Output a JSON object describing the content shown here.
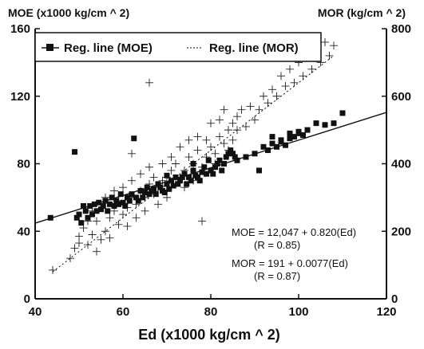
{
  "chart_data": {
    "type": "scatter",
    "xlabel": "Ed (x1000 kg/cm ^ 2)",
    "ylabel_left": "MOE (x1000 kg/cm ^ 2)",
    "ylabel_right": "MOR (kg/cm ^ 2)",
    "xlim": [
      40,
      120
    ],
    "ylim_left": [
      0,
      160
    ],
    "ylim_right": [
      0,
      800
    ],
    "x_ticks": [
      40,
      60,
      80,
      100,
      120
    ],
    "y_left_ticks": [
      0,
      40,
      80,
      120,
      160
    ],
    "y_right_ticks": [
      0,
      200,
      400,
      600,
      800
    ],
    "grid": false,
    "legend": {
      "placement": "top-left",
      "entries": [
        "Reg. line (MOE)",
        "Reg. line (MOR)"
      ]
    },
    "annotations": {
      "moe_eq": "MOE = 12,047 + 0.820(Ed)",
      "moe_r": "(R = 0.85)",
      "mor_eq": "MOR = 191 + 0.0077(Ed)",
      "mor_r": "(R = 0.87)"
    },
    "series": [
      {
        "name": "MOE",
        "axis": "left",
        "marker": "square",
        "regression": {
          "x": [
            40,
            120
          ],
          "y": [
            44.8,
            110.4
          ]
        },
        "points": [
          [
            43.5,
            48
          ],
          [
            49,
            87
          ],
          [
            49.5,
            48
          ],
          [
            50,
            50
          ],
          [
            50.5,
            45
          ],
          [
            51,
            55
          ],
          [
            51.5,
            52
          ],
          [
            52,
            48
          ],
          [
            52.5,
            55
          ],
          [
            53,
            50
          ],
          [
            53.5,
            56
          ],
          [
            54,
            52
          ],
          [
            54.5,
            57
          ],
          [
            55,
            53
          ],
          [
            55.5,
            55
          ],
          [
            56,
            58
          ],
          [
            56.5,
            52
          ],
          [
            57,
            56
          ],
          [
            57.5,
            60
          ],
          [
            58,
            55
          ],
          [
            58.5,
            58
          ],
          [
            59,
            56
          ],
          [
            59.5,
            62
          ],
          [
            60,
            57
          ],
          [
            60.5,
            55
          ],
          [
            61,
            60
          ],
          [
            61.5,
            58
          ],
          [
            62,
            62
          ],
          [
            62.5,
            95
          ],
          [
            63,
            60
          ],
          [
            63.5,
            58
          ],
          [
            64,
            64
          ],
          [
            64.5,
            60
          ],
          [
            65,
            63
          ],
          [
            65.5,
            66
          ],
          [
            66,
            62
          ],
          [
            66.5,
            64
          ],
          [
            67,
            65
          ],
          [
            67.5,
            62
          ],
          [
            68,
            68
          ],
          [
            68.5,
            66
          ],
          [
            69,
            64
          ],
          [
            69.5,
            63
          ],
          [
            70,
            68
          ],
          [
            70.5,
            65
          ],
          [
            71,
            70
          ],
          [
            71.5,
            67
          ],
          [
            72,
            72
          ],
          [
            72.5,
            68
          ],
          [
            73,
            70
          ],
          [
            73.5,
            72
          ],
          [
            74,
            74
          ],
          [
            74.5,
            68
          ],
          [
            75,
            72
          ],
          [
            75.5,
            70
          ],
          [
            76,
            76
          ],
          [
            76.5,
            73
          ],
          [
            77,
            72
          ],
          [
            77.5,
            70
          ],
          [
            78,
            75
          ],
          [
            78.5,
            78
          ],
          [
            79,
            74
          ],
          [
            79.5,
            82
          ],
          [
            80,
            76
          ],
          [
            80.5,
            74
          ],
          [
            81,
            78
          ],
          [
            81.5,
            80
          ],
          [
            82,
            82
          ],
          [
            82.5,
            76
          ],
          [
            83,
            80
          ],
          [
            83.5,
            84
          ],
          [
            84,
            86
          ],
          [
            84.5,
            88
          ],
          [
            85,
            86
          ],
          [
            85.5,
            84
          ],
          [
            86,
            82
          ],
          [
            88,
            84
          ],
          [
            90,
            86
          ],
          [
            91,
            76
          ],
          [
            92,
            90
          ],
          [
            93,
            88
          ],
          [
            94,
            92
          ],
          [
            95,
            90
          ],
          [
            96,
            93
          ],
          [
            97,
            91
          ],
          [
            98,
            95
          ],
          [
            99,
            96
          ],
          [
            100,
            98
          ],
          [
            101,
            97
          ],
          [
            102,
            100
          ],
          [
            104,
            104
          ],
          [
            106,
            103
          ],
          [
            108,
            104
          ],
          [
            110,
            110
          ],
          [
            94,
            96
          ],
          [
            96,
            94
          ],
          [
            98,
            98
          ],
          [
            100,
            99
          ],
          [
            76,
            80
          ],
          [
            70,
            73
          ]
        ]
      },
      {
        "name": "MOR",
        "axis": "right",
        "marker": "plus",
        "regression": {
          "x": [
            44,
            108
          ],
          "y": [
            80,
            720
          ]
        },
        "points": [
          [
            44,
            85
          ],
          [
            48,
            120
          ],
          [
            49,
            150
          ],
          [
            50,
            165
          ],
          [
            50,
            185
          ],
          [
            51,
            210
          ],
          [
            52,
            160
          ],
          [
            52,
            230
          ],
          [
            53,
            190
          ],
          [
            53,
            260
          ],
          [
            54,
            140
          ],
          [
            54,
            230
          ],
          [
            55,
            175
          ],
          [
            55,
            280
          ],
          [
            56,
            200
          ],
          [
            56,
            300
          ],
          [
            57,
            240
          ],
          [
            57,
            180
          ],
          [
            58,
            260
          ],
          [
            58,
            320
          ],
          [
            59,
            220
          ],
          [
            59,
            290
          ],
          [
            60,
            250
          ],
          [
            60,
            330
          ],
          [
            61,
            270
          ],
          [
            61,
            215
          ],
          [
            62,
            300
          ],
          [
            62,
            350
          ],
          [
            63,
            280
          ],
          [
            63,
            240
          ],
          [
            64,
            320
          ],
          [
            64,
            370
          ],
          [
            65,
            300
          ],
          [
            65,
            260
          ],
          [
            66,
            340
          ],
          [
            66,
            390
          ],
          [
            67,
            310
          ],
          [
            67,
            360
          ],
          [
            68,
            330
          ],
          [
            68,
            280
          ],
          [
            69,
            350
          ],
          [
            69,
            400
          ],
          [
            70,
            360
          ],
          [
            70,
            300
          ],
          [
            71,
            380
          ],
          [
            71,
            420
          ],
          [
            72,
            340
          ],
          [
            72,
            400
          ],
          [
            73,
            360
          ],
          [
            73,
            450
          ],
          [
            74,
            380
          ],
          [
            74,
            330
          ],
          [
            75,
            420
          ],
          [
            75,
            470
          ],
          [
            76,
            400
          ],
          [
            76,
            350
          ],
          [
            77,
            440
          ],
          [
            77,
            480
          ],
          [
            78,
            390
          ],
          [
            78,
            230
          ],
          [
            79,
            470
          ],
          [
            79,
            420
          ],
          [
            80,
            450
          ],
          [
            80,
            520
          ],
          [
            81,
            430
          ],
          [
            81,
            400
          ],
          [
            82,
            480
          ],
          [
            82,
            530
          ],
          [
            83,
            460
          ],
          [
            83,
            560
          ],
          [
            84,
            500
          ],
          [
            84,
            440
          ],
          [
            85,
            520
          ],
          [
            85,
            470
          ],
          [
            86,
            540
          ],
          [
            86,
            500
          ],
          [
            87,
            560
          ],
          [
            88,
            510
          ],
          [
            89,
            570
          ],
          [
            90,
            530
          ],
          [
            91,
            560
          ],
          [
            92,
            600
          ],
          [
            93,
            580
          ],
          [
            94,
            620
          ],
          [
            95,
            600
          ],
          [
            96,
            660
          ],
          [
            97,
            630
          ],
          [
            98,
            680
          ],
          [
            99,
            640
          ],
          [
            100,
            700
          ],
          [
            101,
            660
          ],
          [
            102,
            720
          ],
          [
            103,
            680
          ],
          [
            104,
            740
          ],
          [
            105,
            700
          ],
          [
            106,
            760
          ],
          [
            107,
            720
          ],
          [
            108,
            750
          ],
          [
            66,
            640
          ],
          [
            62,
            430
          ]
        ]
      }
    ]
  }
}
